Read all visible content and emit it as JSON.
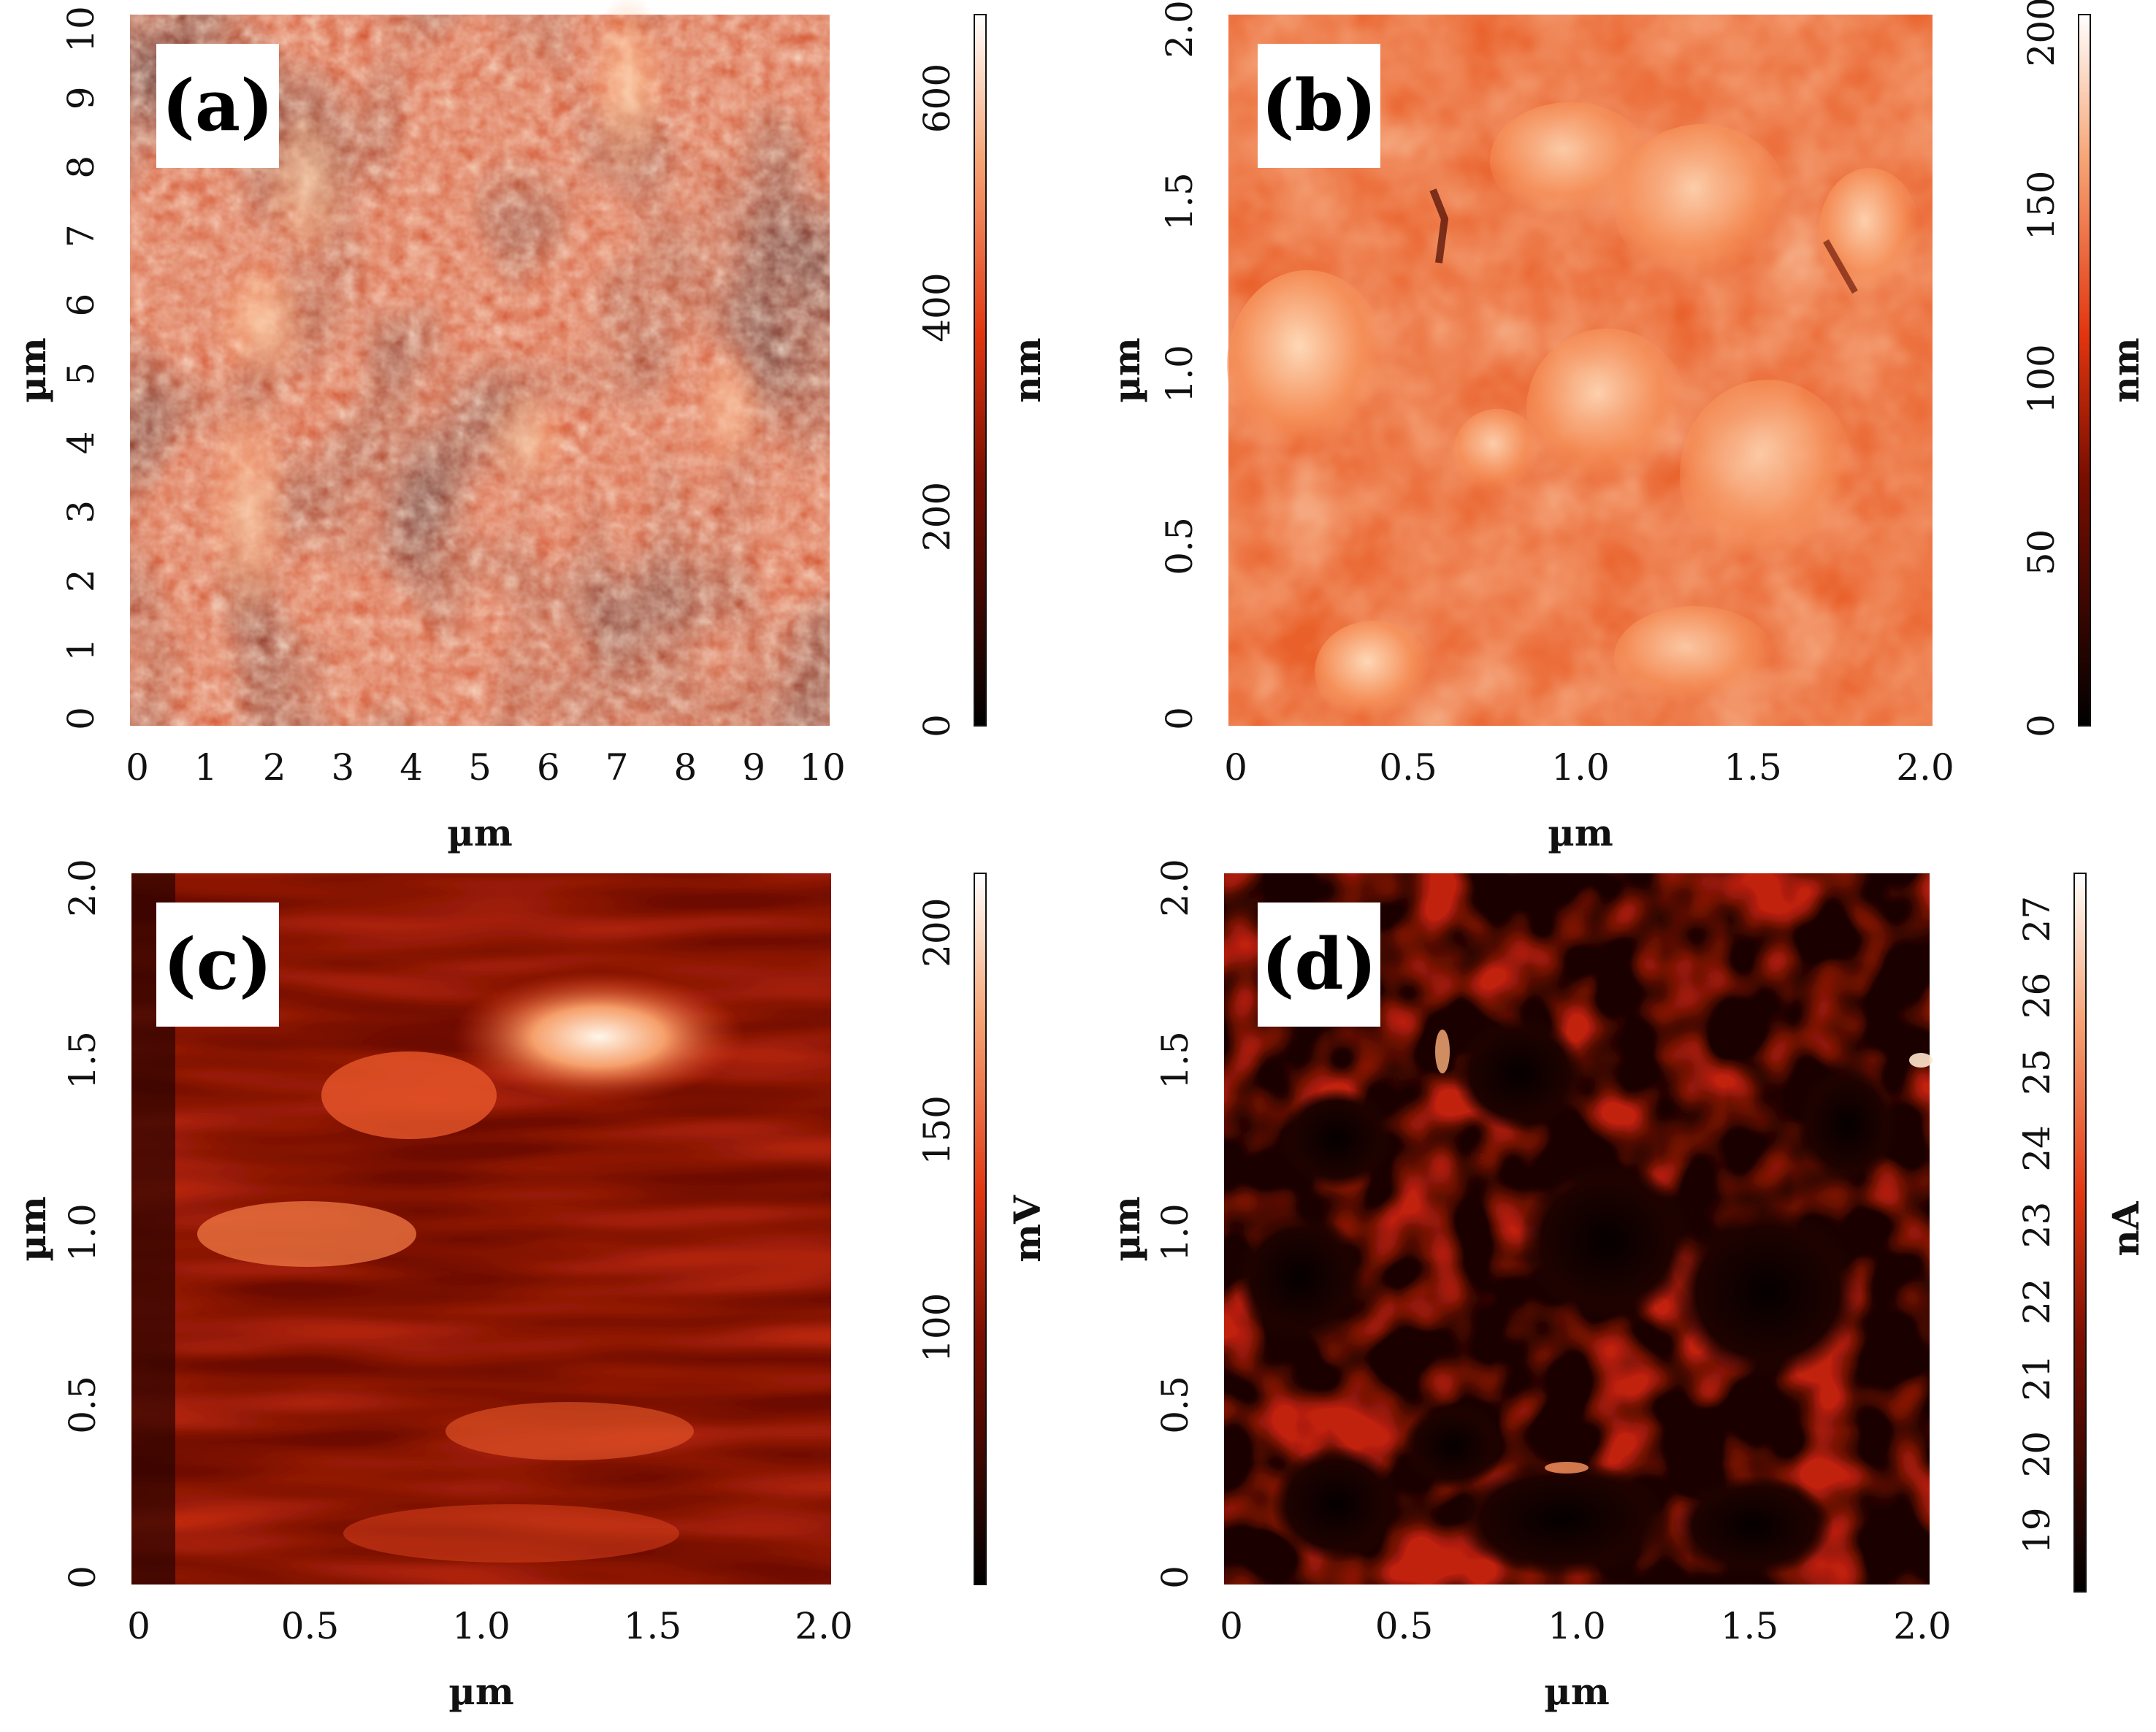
{
  "figure": {
    "panels": [
      {
        "id": "a",
        "label": "(a)",
        "image_kind": "topography",
        "x_ticks": [
          "0",
          "1",
          "2",
          "3",
          "4",
          "5",
          "6",
          "7",
          "8",
          "9",
          "10"
        ],
        "y_ticks": [
          "0",
          "1",
          "2",
          "3",
          "4",
          "5",
          "6",
          "7",
          "8",
          "9",
          "10"
        ],
        "x_label": "µm",
        "y_label": "µm",
        "colorbar": {
          "ticks": [
            "0",
            "200",
            "400",
            "600"
          ],
          "unit": "nm"
        }
      },
      {
        "id": "b",
        "label": "(b)",
        "image_kind": "topography",
        "x_ticks": [
          "0",
          "0.5",
          "1.0",
          "1.5",
          "2.0"
        ],
        "y_ticks": [
          "0",
          "0.5",
          "1.0",
          "1.5",
          "2.0"
        ],
        "x_label": "µm",
        "y_label": "µm",
        "colorbar": {
          "ticks": [
            "0",
            "50",
            "100",
            "150",
            "200"
          ],
          "unit": "nm"
        }
      },
      {
        "id": "c",
        "label": "(c)",
        "image_kind": "surface-potential",
        "x_ticks": [
          "0",
          "0.5",
          "1.0",
          "1.5",
          "2.0"
        ],
        "y_ticks": [
          "0",
          "0.5",
          "1.0",
          "1.5",
          "2.0"
        ],
        "x_label": "µm",
        "y_label": "µm",
        "colorbar": {
          "ticks": [
            "100",
            "150",
            "200"
          ],
          "unit": "mV"
        }
      },
      {
        "id": "d",
        "label": "(d)",
        "image_kind": "current",
        "x_ticks": [
          "0",
          "0.5",
          "1.0",
          "1.5",
          "2.0"
        ],
        "y_ticks": [
          "0",
          "0.5",
          "1.0",
          "1.5",
          "2.0"
        ],
        "x_label": "µm",
        "y_label": "µm",
        "colorbar": {
          "ticks": [
            "19",
            "20",
            "21",
            "22",
            "23",
            "24",
            "25",
            "26",
            "27"
          ],
          "unit": "nA"
        }
      }
    ],
    "colormap": [
      "#000000",
      "#7a0e00",
      "#e2350f",
      "#f7a677",
      "#ffffff"
    ]
  }
}
